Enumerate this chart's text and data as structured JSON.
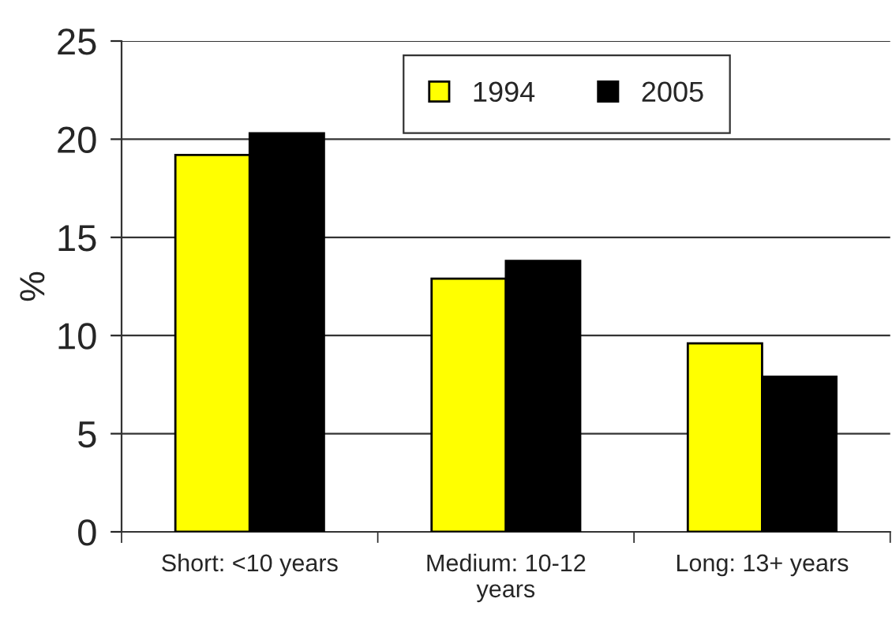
{
  "chart_data": {
    "type": "bar",
    "ylabel": "%",
    "categories": [
      "Short: <10 years",
      "Medium: 10-12 years",
      "Long: 13+ years"
    ],
    "series": [
      {
        "name": "1994",
        "color": "#ffff00",
        "values": [
          19.2,
          12.9,
          9.6
        ]
      },
      {
        "name": "2005",
        "color": "#000000",
        "values": [
          20.3,
          13.8,
          7.9
        ]
      }
    ],
    "ylim": [
      0,
      25
    ],
    "yticks": [
      0,
      5,
      10,
      15,
      20,
      25
    ],
    "grid": "y",
    "legend": "top right"
  }
}
